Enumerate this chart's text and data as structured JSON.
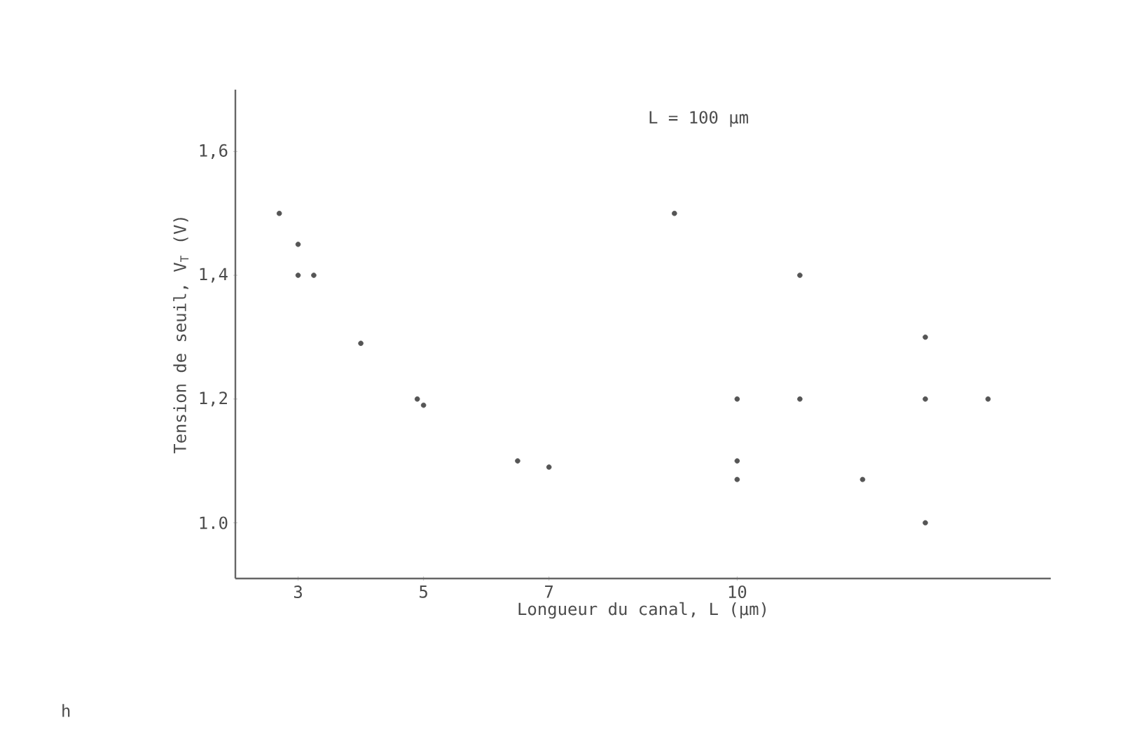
{
  "chart_data": {
    "type": "scatter",
    "xlabel": "Longueur du canal, L (µm)",
    "ylabel": "Tension de seuil, V$_{T}$ (V)",
    "annotations": [
      "L = 100 µm",
      "h"
    ],
    "x": [
      2.7,
      3.0,
      3.0,
      3.25,
      4,
      4.9,
      5,
      6.5,
      7,
      9,
      10,
      10,
      10,
      11,
      11,
      12,
      13,
      13,
      13,
      14
    ],
    "values": [
      1.5,
      1.45,
      1.4,
      1.4,
      1.29,
      1.2,
      1.19,
      1.1,
      1.09,
      1.5,
      1.2,
      1.1,
      1.07,
      1.4,
      1.2,
      1.07,
      1.3,
      1.2,
      1.0,
      1.2
    ],
    "color": "#555555",
    "marker": "circle",
    "xlim": [
      2,
      15
    ],
    "ylim": [
      0.91,
      1.7
    ],
    "xticks": [
      3,
      5,
      7,
      10
    ],
    "yticks": [
      {
        "value": 1.0,
        "label": "1.0"
      },
      {
        "value": 1.2,
        "label": "1,2"
      },
      {
        "value": 1.4,
        "label": "1,4"
      },
      {
        "value": 1.6,
        "label": "1,6"
      }
    ]
  }
}
